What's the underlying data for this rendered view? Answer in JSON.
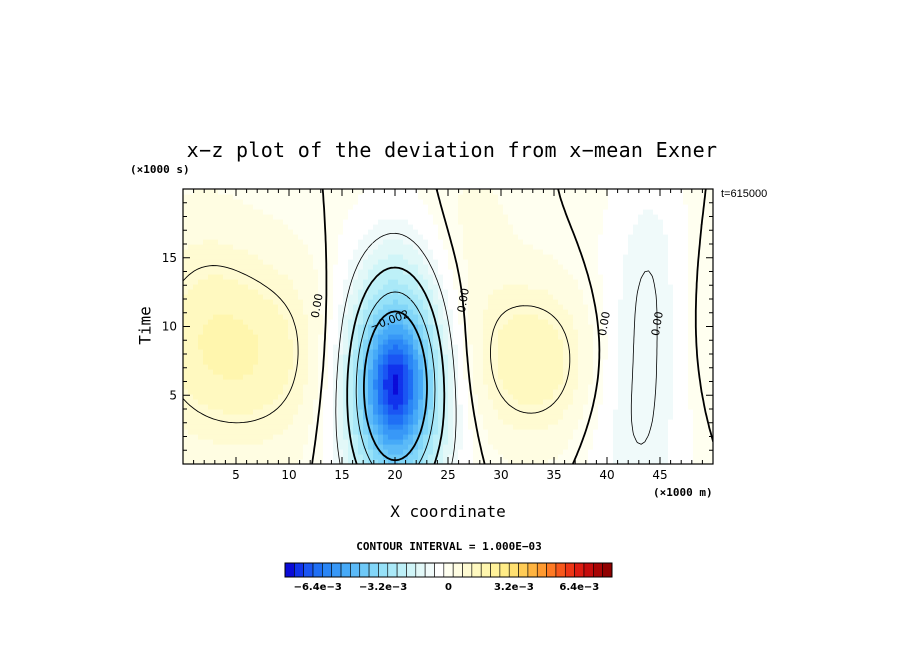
{
  "chart_data": {
    "type": "heatmap",
    "title": "x−z plot of the deviation from x−mean Exner",
    "xlabel": "X coordinate",
    "ylabel": "Time",
    "x_unit": "(×1000 m)",
    "y_unit": "(×1000 s)",
    "time_label": "t=615000",
    "xlim": [
      0,
      50
    ],
    "ylim": [
      0,
      20
    ],
    "x_ticks": [
      5,
      10,
      15,
      20,
      25,
      30,
      35,
      40,
      45
    ],
    "y_ticks": [
      5,
      10,
      15
    ],
    "contour_interval_label": "CONTOUR INTERVAL = 1.000E−03",
    "contour_labels": [
      {
        "text": "0.00",
        "x": 12.7,
        "y": 11.5
      },
      {
        "text": "−0.002",
        "x": 19.5,
        "y": 10.4
      },
      {
        "text": "0.00",
        "x": 26.5,
        "y": 11.9
      },
      {
        "text": "0.00",
        "x": 39.8,
        "y": 10.2
      },
      {
        "text": "0.00",
        "x": 44.8,
        "y": 10.2
      }
    ],
    "anomalies": [
      {
        "x": 20,
        "y": 5.7,
        "sx": 3.4,
        "sy": 6.0,
        "amp": -0.0058
      },
      {
        "x": 20,
        "y": 5.9,
        "sx": 1.5,
        "sy": 2.6,
        "amp": -0.002
      },
      {
        "x": 5.5,
        "y": 8.0,
        "sx": 6.5,
        "sy": 5.0,
        "amp": 0.0016
      },
      {
        "x": 33,
        "y": 7.5,
        "sx": 4.5,
        "sy": 4.0,
        "amp": 0.0016
      },
      {
        "x": 1.5,
        "y": 13,
        "sx": 3.5,
        "sy": 5.0,
        "amp": 0.0004
      },
      {
        "x": 43,
        "y": 4.5,
        "sx": 3.5,
        "sy": 8.0,
        "amp": -0.0011
      },
      {
        "x": 44.5,
        "y": 15,
        "sx": 2.5,
        "sy": 6.0,
        "amp": -0.0006
      },
      {
        "x": 49,
        "y": 10,
        "sx": 3.0,
        "sy": 6.0,
        "amp": 0.0004
      },
      {
        "x": 27,
        "y": 16,
        "sx": 3.0,
        "sy": 5.0,
        "amp": 0.0004
      }
    ],
    "colorbar": {
      "min": -0.008,
      "max": 0.008,
      "step": 0.0004,
      "tick_labels": [
        "−6.4e−3",
        "−3.2e−3",
        "0",
        "3.2e−3",
        "6.4e−3"
      ],
      "tick_values": [
        -0.0064,
        -0.0032,
        0,
        0.0032,
        0.0064
      ],
      "colors": [
        "#0b0bd8",
        "#1133ec",
        "#1a55f3",
        "#1f6ff5",
        "#2a86f6",
        "#3898f7",
        "#46aaf8",
        "#5bbaf8",
        "#6ec9f8",
        "#82d6f8",
        "#96e1f8",
        "#aae9f8",
        "#bdf0f8",
        "#d0f5f8",
        "#e2f8f8",
        "#f0fafa",
        "#ffffff",
        "#fffff0",
        "#fffde2",
        "#fffbd2",
        "#fff9c0",
        "#fff6ae",
        "#fff29a",
        "#ffec86",
        "#ffe070",
        "#ffcc56",
        "#ffb440",
        "#ff9a30",
        "#ff7a24",
        "#f8581c",
        "#ee3616",
        "#dd1c12",
        "#c50c0c",
        "#a80404",
        "#900000"
      ]
    }
  }
}
